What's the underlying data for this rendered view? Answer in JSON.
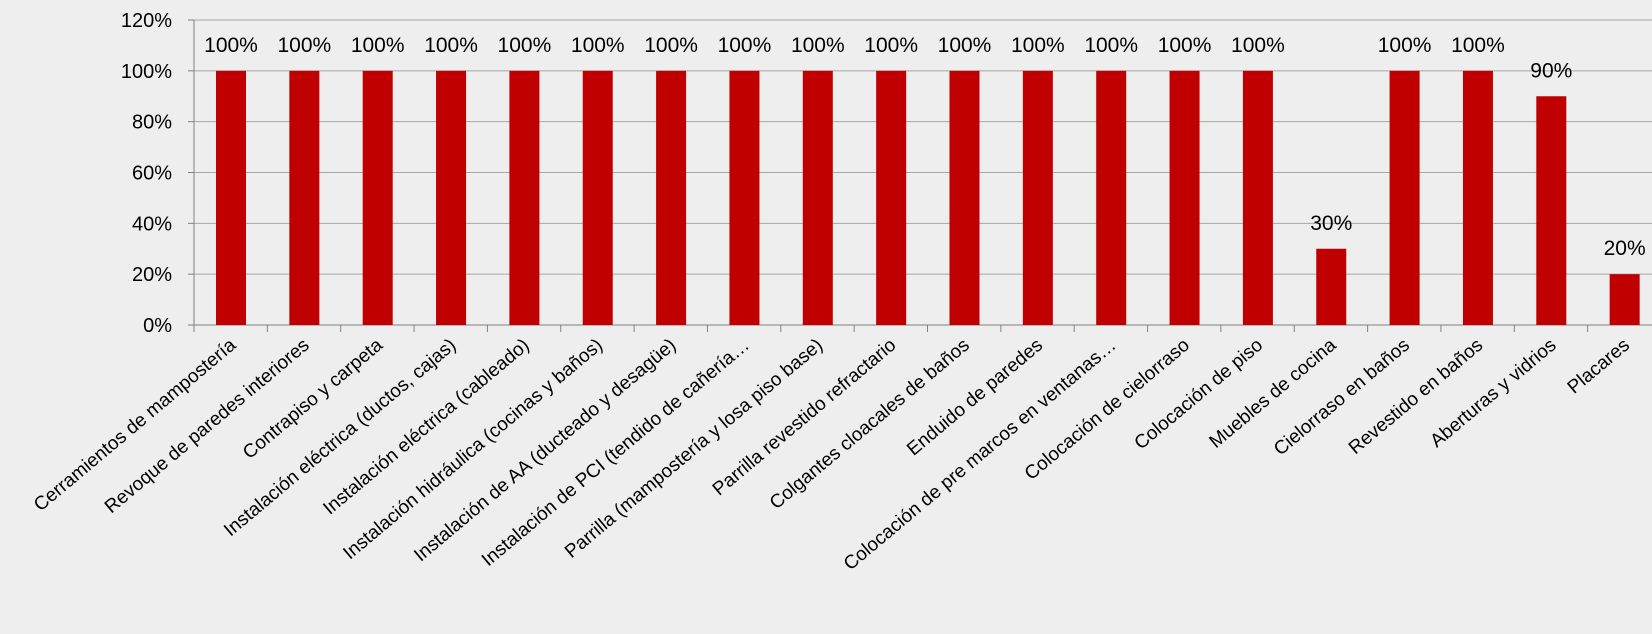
{
  "chart_data": {
    "type": "bar",
    "title": "",
    "xlabel": "",
    "ylabel": "",
    "ylim": [
      0,
      120
    ],
    "y_tick_step": 20,
    "y_tick_format": "percent",
    "grid": "horizontal",
    "legend": "none",
    "bar_color": "#c00000",
    "categories": [
      "Cerramientos de mampostería",
      "Revoque de paredes interiores",
      "Contrapiso y carpeta",
      "Instalación eléctrica (ductos, cajas)",
      "Instalación eléctrica (cableado)",
      "Instalación hidráulica (cocinas y baños)",
      "Instalación de AA (ducteado y desagüe)",
      "Instalación de PCI (tendido de cañería…",
      "Parrilla (mampostería y losa piso base)",
      "Parrilla revestido refractario",
      "Colgantes cloacales de baños",
      "Enduido de paredes",
      "Colocación de pre marcos en ventanas…",
      "Colocación de cielorraso",
      "Colocación de piso",
      "Muebles de cocina",
      "Cielorraso en baños",
      "Revestido en baños",
      "Aberturas y vidrios",
      "Placares"
    ],
    "values": [
      100,
      100,
      100,
      100,
      100,
      100,
      100,
      100,
      100,
      100,
      100,
      100,
      100,
      100,
      100,
      30,
      100,
      100,
      90,
      20
    ],
    "data_labels": [
      "100%",
      "100%",
      "100%",
      "100%",
      "100%",
      "100%",
      "100%",
      "100%",
      "100%",
      "100%",
      "100%",
      "100%",
      "100%",
      "100%",
      "100%",
      "30%",
      "100%",
      "100%",
      "90%",
      "20%"
    ],
    "y_tick_labels": [
      "0%",
      "20%",
      "40%",
      "60%",
      "80%",
      "100%",
      "120%"
    ]
  }
}
